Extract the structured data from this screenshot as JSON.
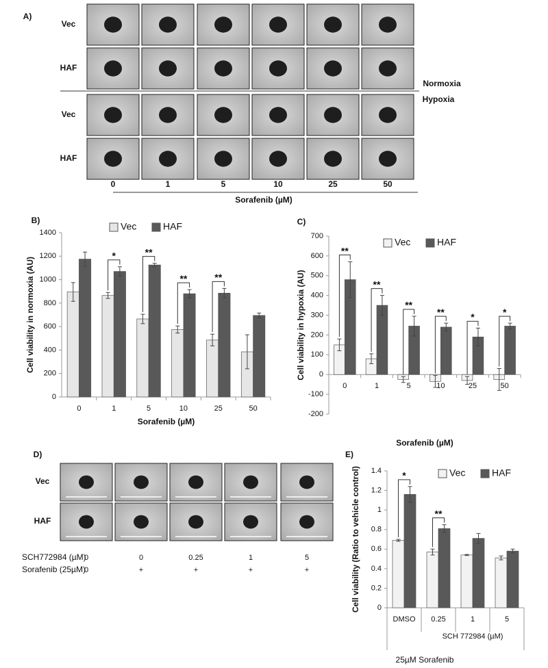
{
  "panel_a": {
    "label": "A)",
    "rows": [
      "Vec",
      "HAF",
      "Vec",
      "HAF"
    ],
    "conditions": [
      "Normoxia",
      "Hypoxia"
    ],
    "columns": [
      "0",
      "1",
      "5",
      "10",
      "25",
      "50"
    ],
    "xlabel": "Sorafenib (µM)"
  },
  "panel_d": {
    "label": "D)",
    "rows": [
      "Vec",
      "HAF"
    ],
    "treatments": [
      {
        "name": "SCH772984 (µM)",
        "values": [
          "0",
          "0",
          "0.25",
          "1",
          "5"
        ]
      },
      {
        "name": "Sorafenib (25µM)",
        "values": [
          "0",
          "+",
          "+",
          "+",
          "+"
        ]
      }
    ]
  },
  "chart_data": [
    {
      "type": "bar",
      "panel_label": "B)",
      "ylabel": "Cell viability in normoxia (AU)",
      "xlabel": "Sorafenib (µM)",
      "categories": [
        "0",
        "1",
        "5",
        "10",
        "25",
        "50"
      ],
      "series": [
        {
          "name": "Vec",
          "color": "#e6e6e6",
          "values": [
            895,
            865,
            665,
            575,
            485,
            385
          ],
          "errors": [
            80,
            25,
            40,
            30,
            50,
            145
          ]
        },
        {
          "name": "HAF",
          "color": "#595959",
          "values": [
            1175,
            1070,
            1125,
            880,
            885,
            695
          ],
          "errors": [
            60,
            40,
            15,
            35,
            40,
            20
          ]
        }
      ],
      "significance": [
        null,
        "*",
        "**",
        "**",
        "**",
        null
      ],
      "ylim": [
        0,
        1400
      ],
      "yticks": [
        0,
        200,
        400,
        600,
        800,
        1000,
        1200,
        1400
      ]
    },
    {
      "type": "bar",
      "panel_label": "C)",
      "ylabel": "Cell viability in hypoxia (AU)",
      "xlabel": "Sorafenib (µM)",
      "categories": [
        "0",
        "1",
        "5",
        "10",
        "25",
        "50"
      ],
      "series": [
        {
          "name": "Vec",
          "color": "#f2f2f2",
          "values": [
            150,
            80,
            -25,
            -35,
            -30,
            -25
          ],
          "errors": [
            30,
            25,
            15,
            30,
            20,
            55
          ]
        },
        {
          "name": "HAF",
          "color": "#595959",
          "values": [
            480,
            350,
            245,
            240,
            190,
            245
          ],
          "errors": [
            90,
            50,
            50,
            20,
            45,
            15
          ]
        }
      ],
      "significance": [
        "**",
        "**",
        "**",
        "**",
        "*",
        "*"
      ],
      "ylim": [
        -200,
        700
      ],
      "yticks": [
        -200,
        -100,
        0,
        100,
        200,
        300,
        400,
        500,
        600,
        700
      ]
    },
    {
      "type": "bar",
      "panel_label": "E)",
      "ylabel": "Cell viability (Ratio to vehicle control)",
      "categories": [
        "DMSO",
        "0.25",
        "1",
        "5"
      ],
      "series": [
        {
          "name": "Vec",
          "color": "#f2f2f2",
          "values": [
            0.69,
            0.57,
            0.54,
            0.51
          ],
          "errors": [
            0.01,
            0.03,
            0.005,
            0.02
          ]
        },
        {
          "name": "HAF",
          "color": "#595959",
          "values": [
            1.16,
            0.81,
            0.71,
            0.58
          ],
          "errors": [
            0.08,
            0.04,
            0.05,
            0.02
          ]
        }
      ],
      "significance": [
        "*",
        "**",
        null,
        null
      ],
      "group_label": "SCH 772984 (µM)",
      "footer": "25µM Sorafenib",
      "ylim": [
        0,
        1.4
      ],
      "yticks": [
        0,
        0.2,
        0.4,
        0.6,
        0.8,
        1,
        1.2,
        1.4
      ]
    }
  ]
}
